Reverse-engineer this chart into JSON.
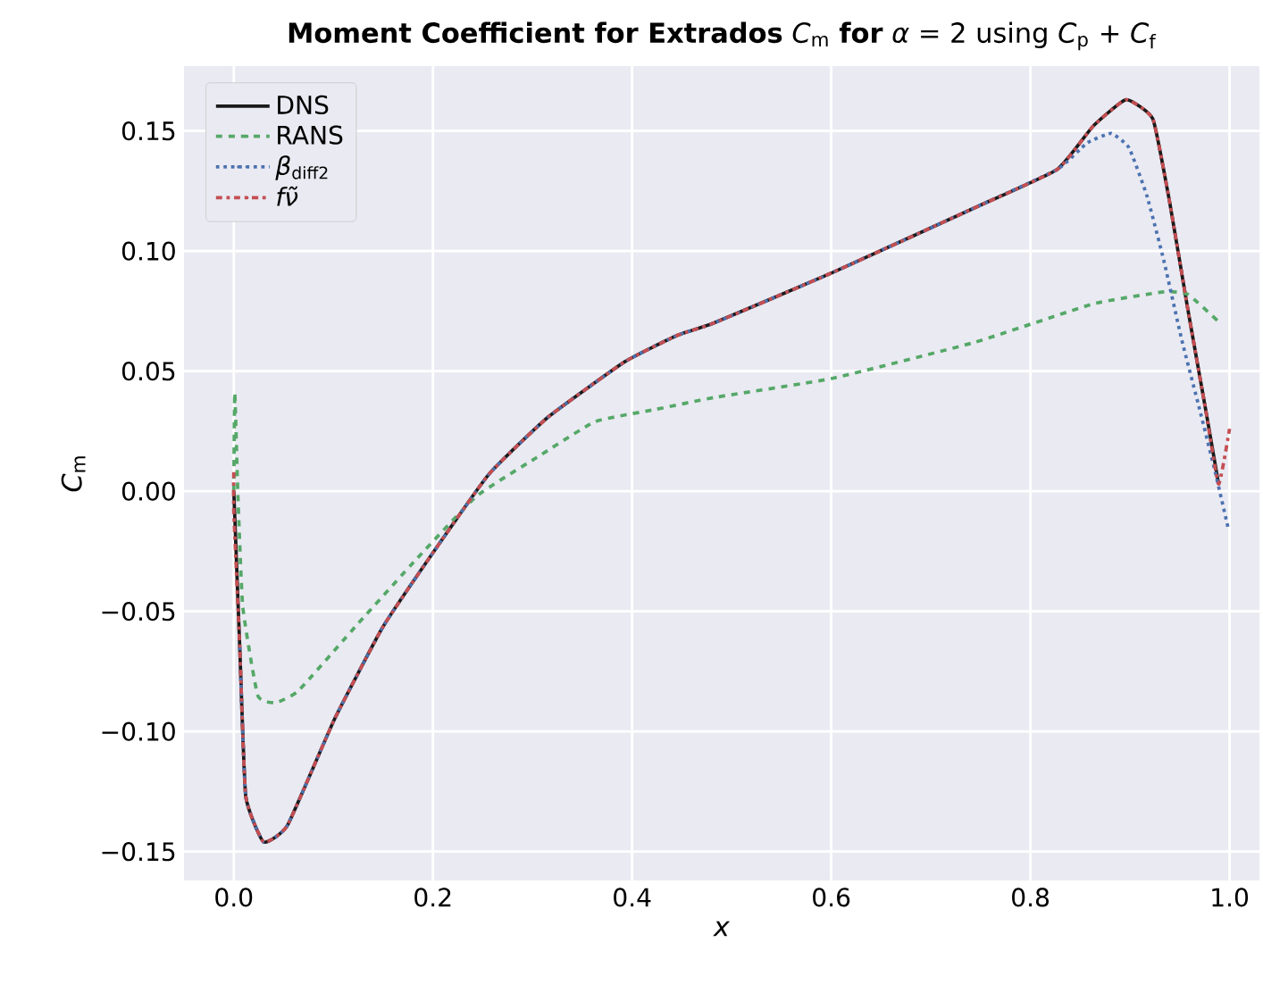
{
  "chart_data": {
    "type": "line",
    "title": "**Moment Coefficient for Extrados** *C*$_{m}$ **for** *α* = 2 using *C*$_{p}$ + *C*$_{f}$",
    "xlabel": "*x*",
    "ylabel": "*C*$_{m}$",
    "xlim": [
      -0.05,
      1.03
    ],
    "ylim": [
      -0.162,
      0.177
    ],
    "xticks": [
      {
        "value": 0,
        "label": "0.0"
      },
      {
        "value": 0.2,
        "label": "0.2"
      },
      {
        "value": 0.4,
        "label": "0.4"
      },
      {
        "value": 0.6,
        "label": "0.6"
      },
      {
        "value": 0.8,
        "label": "0.8"
      },
      {
        "value": 1,
        "label": "1.0"
      }
    ],
    "yticks": [
      {
        "value": -0.15,
        "label": "−0.15"
      },
      {
        "value": -0.1,
        "label": "−0.10"
      },
      {
        "value": -0.05,
        "label": "−0.05"
      },
      {
        "value": 0,
        "label": "0.00"
      },
      {
        "value": 0.05,
        "label": "0.05"
      },
      {
        "value": 0.1,
        "label": "0.10"
      },
      {
        "value": 0.15,
        "label": "0.15"
      }
    ],
    "grid": true,
    "legend": "top left",
    "series": [
      {
        "name": "DNS",
        "color": "#1a1a1a",
        "line_style": "solid",
        "x": [
          0,
          0.006,
          0.012,
          0.03,
          0.054,
          0.101,
          0.149,
          0.196,
          0.256,
          0.316,
          0.393,
          0.446,
          0.482,
          0.601,
          0.744,
          0.827,
          0.863,
          0.896,
          0.923,
          0.94,
          0.958,
          0.976,
          0.989
        ],
        "values": [
          0.0,
          -0.065,
          -0.127,
          -0.146,
          -0.139,
          -0.095,
          -0.057,
          -0.028,
          0.007,
          0.031,
          0.054,
          0.065,
          0.07,
          0.091,
          0.118,
          0.134,
          0.152,
          0.163,
          0.155,
          0.12,
          0.076,
          0.034,
          0.003
        ]
      },
      {
        "name": "RANS",
        "color": "#55a868",
        "line_style": "dashed",
        "x": [
          0,
          0.001,
          0.004,
          0.009,
          0.024,
          0.042,
          0.065,
          0.125,
          0.184,
          0.244,
          0.304,
          0.363,
          0.423,
          0.482,
          0.601,
          0.744,
          0.863,
          0.934,
          0.958,
          0.988
        ],
        "values": [
          0.0,
          0.041,
          0.0,
          -0.048,
          -0.085,
          -0.088,
          -0.083,
          -0.055,
          -0.028,
          -0.002,
          0.014,
          0.029,
          0.034,
          0.039,
          0.047,
          0.062,
          0.078,
          0.083,
          0.082,
          0.071
        ]
      },
      {
        "name": "*β*$_{diff2}$",
        "color": "#4c72b0",
        "line_style": "dotted",
        "x": [
          0.006,
          0.012,
          0.03,
          0.054,
          0.101,
          0.149,
          0.196,
          0.256,
          0.316,
          0.393,
          0.446,
          0.482,
          0.601,
          0.744,
          0.827,
          0.857,
          0.881,
          0.899,
          0.917,
          0.934,
          0.952,
          0.97,
          0.985,
          0.999
        ],
        "values": [
          -0.065,
          -0.127,
          -0.146,
          -0.139,
          -0.095,
          -0.057,
          -0.028,
          0.007,
          0.031,
          0.054,
          0.065,
          0.07,
          0.091,
          0.118,
          0.134,
          0.145,
          0.149,
          0.143,
          0.123,
          0.096,
          0.063,
          0.034,
          0.009,
          -0.016
        ]
      },
      {
        "name": "*fν̃*",
        "color": "#c44e52",
        "line_style": "dashdot",
        "x": [
          0,
          0,
          0.006,
          0.012,
          0.03,
          0.054,
          0.101,
          0.149,
          0.196,
          0.256,
          0.316,
          0.393,
          0.446,
          0.482,
          0.601,
          0.744,
          0.827,
          0.863,
          0.896,
          0.923,
          0.94,
          0.958,
          0.976,
          0.989,
          1.0
        ],
        "values": [
          0.008,
          -0.009,
          -0.065,
          -0.127,
          -0.146,
          -0.139,
          -0.095,
          -0.057,
          -0.028,
          0.007,
          0.031,
          0.054,
          0.065,
          0.07,
          0.091,
          0.118,
          0.134,
          0.152,
          0.163,
          0.155,
          0.12,
          0.076,
          0.034,
          0.003,
          0.026
        ]
      }
    ]
  }
}
